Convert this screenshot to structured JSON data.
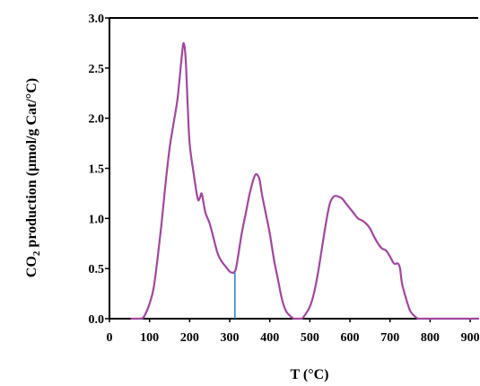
{
  "chart_data": {
    "type": "line",
    "xlabel": "T (°C)",
    "ylabel_main": "CO",
    "ylabel_sub": "2",
    "ylabel_rest": " production (µmol/g Cat/°C)",
    "xlim": [
      0,
      920
    ],
    "ylim": [
      0,
      3.0
    ],
    "x_ticks": [
      {
        "value": 0,
        "label": "0"
      },
      {
        "value": 100,
        "label": "100"
      },
      {
        "value": 200,
        "label": "200"
      },
      {
        "value": 300,
        "label": "300"
      },
      {
        "value": 400,
        "label": "400"
      },
      {
        "value": 500,
        "label": "500"
      },
      {
        "value": 600,
        "label": "600"
      },
      {
        "value": 700,
        "label": "700"
      },
      {
        "value": 800,
        "label": "800"
      },
      {
        "value": 900,
        "label": "900"
      }
    ],
    "y_ticks": [
      {
        "value": 0.0,
        "label": "0.0"
      },
      {
        "value": 0.5,
        "label": "0.5"
      },
      {
        "value": 1.0,
        "label": "1.0"
      },
      {
        "value": 1.5,
        "label": "1.5"
      },
      {
        "value": 2.0,
        "label": "2.0"
      },
      {
        "value": 2.5,
        "label": "2.5"
      },
      {
        "value": 3.0,
        "label": "3.0"
      }
    ],
    "grid": false,
    "series": [
      {
        "color": "#a0479e",
        "x": [
          55,
          80,
          90,
          100,
          110,
          120,
          130,
          140,
          150,
          160,
          170,
          180,
          185,
          190,
          195,
          200,
          210,
          220,
          225,
          230,
          235,
          240,
          250,
          260,
          270,
          280,
          290,
          300,
          305,
          310,
          315,
          320,
          330,
          340,
          350,
          360,
          365,
          370,
          375,
          380,
          390,
          400,
          410,
          420,
          430,
          440,
          450,
          460,
          470,
          480,
          490,
          500,
          510,
          520,
          530,
          540,
          550,
          560,
          570,
          580,
          590,
          600,
          610,
          620,
          630,
          640,
          650,
          660,
          670,
          680,
          690,
          700,
          710,
          720,
          725,
          730,
          740,
          750,
          760,
          770,
          780,
          790,
          800,
          850,
          920
        ],
        "y": [
          0.0,
          0.0,
          0.05,
          0.15,
          0.3,
          0.6,
          0.95,
          1.35,
          1.7,
          1.95,
          2.2,
          2.6,
          2.75,
          2.6,
          2.15,
          1.75,
          1.45,
          1.2,
          1.2,
          1.25,
          1.15,
          1.05,
          0.95,
          0.8,
          0.65,
          0.57,
          0.52,
          0.47,
          0.46,
          0.46,
          0.49,
          0.6,
          0.85,
          1.05,
          1.25,
          1.4,
          1.44,
          1.43,
          1.38,
          1.25,
          1.05,
          0.85,
          0.6,
          0.4,
          0.2,
          0.08,
          0.03,
          0.0,
          0.0,
          0.0,
          0.05,
          0.12,
          0.25,
          0.45,
          0.7,
          0.95,
          1.15,
          1.22,
          1.22,
          1.2,
          1.15,
          1.1,
          1.05,
          1.0,
          0.98,
          0.95,
          0.9,
          0.82,
          0.75,
          0.7,
          0.68,
          0.62,
          0.55,
          0.55,
          0.5,
          0.35,
          0.2,
          0.08,
          0.03,
          0.0,
          0.0,
          0.0,
          0.0,
          0.0,
          0.0
        ]
      }
    ],
    "marker_line": {
      "x": 313,
      "y": 0.46,
      "color": "#2a7fc2"
    }
  }
}
